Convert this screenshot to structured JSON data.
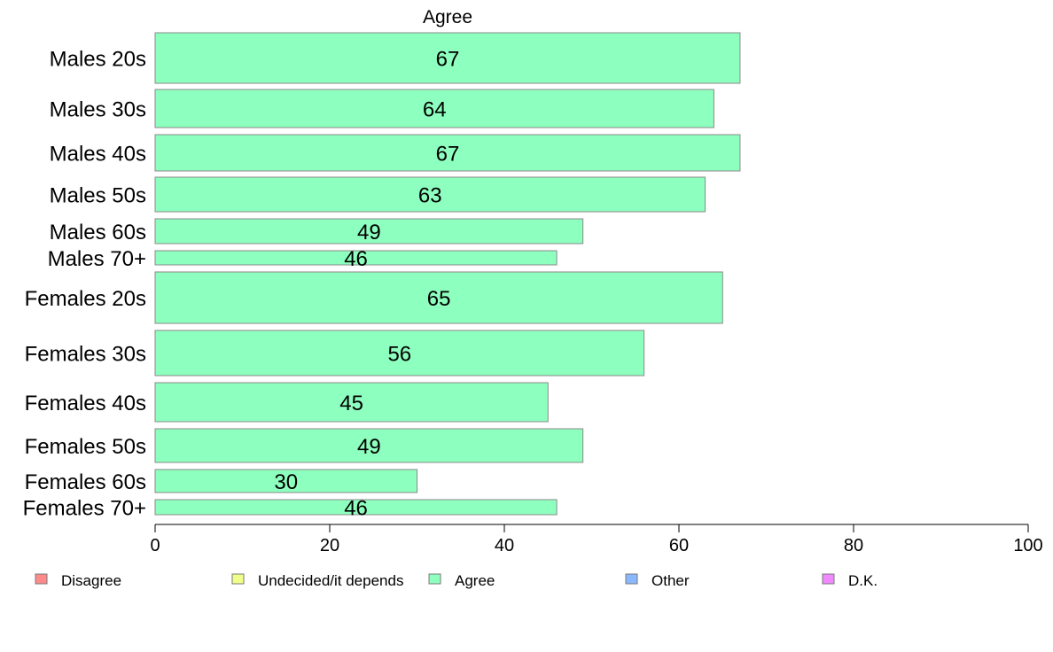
{
  "chart_data": {
    "type": "bar",
    "orientation": "horizontal",
    "title": "Agree",
    "categories": [
      "Males 20s",
      "Males 30s",
      "Males 40s",
      "Males 50s",
      "Males 60s",
      "Males 70+",
      "Females 20s",
      "Females 30s",
      "Females 40s",
      "Females 50s",
      "Females 60s",
      "Females 70+"
    ],
    "series": [
      {
        "name": "Agree",
        "color": "#8dffbe",
        "values": [
          67,
          64,
          67,
          63,
          49,
          46,
          65,
          56,
          45,
          49,
          30,
          46
        ]
      }
    ],
    "xlim": [
      0,
      100
    ],
    "xticks": [
      0,
      20,
      40,
      60,
      80,
      100
    ],
    "grid": false,
    "legend_position": "bottom",
    "legend": [
      {
        "label": "Disagree",
        "color": "#ff8a8a"
      },
      {
        "label": "Undecided/it depends",
        "color": "#f0ff8a"
      },
      {
        "label": "Agree",
        "color": "#8dffbe"
      },
      {
        "label": "Other",
        "color": "#8ab8ff"
      },
      {
        "label": "D.K.",
        "color": "#f08aff"
      }
    ]
  }
}
